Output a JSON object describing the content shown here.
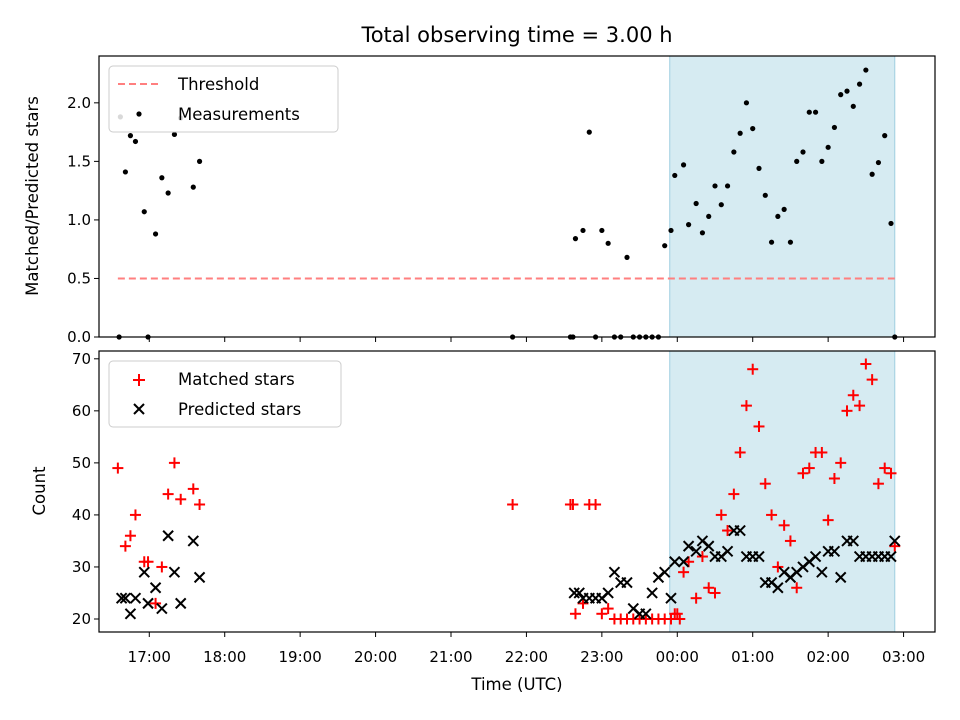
{
  "figure": {
    "title": "Total observing time = 3.00 h"
  },
  "chart_data": [
    {
      "type": "scatter",
      "ylabel": "Matched/Predicted stars",
      "ylim": [
        0,
        2.4
      ],
      "yticks": [
        0.0,
        0.5,
        1.0,
        1.5,
        2.0
      ],
      "ytick_labels": [
        "0.0",
        "0.5",
        "1.0",
        "1.5",
        "2.0"
      ],
      "xlim": [
        "16:20",
        "03:25"
      ],
      "shaded_range": [
        "23:54",
        "02:53"
      ],
      "shade_color": "#add8e6",
      "threshold": {
        "name": "Threshold",
        "y": 0.5,
        "x_range": [
          "16:35",
          "02:53"
        ],
        "color": "#ff7f7f",
        "style": "dashed"
      },
      "series": [
        {
          "name": "Measurements",
          "color": "#000000",
          "marker": "dot",
          "x": [
            "16:36",
            "16:37",
            "16:41",
            "16:45",
            "16:49",
            "16:56",
            "16:59",
            "17:05",
            "17:10",
            "17:15",
            "17:20",
            "17:25",
            "17:35",
            "17:40",
            "21:49",
            "22:35",
            "22:37",
            "22:39",
            "22:45",
            "22:50",
            "22:55",
            "23:00",
            "23:05",
            "23:10",
            "23:15",
            "23:20",
            "23:25",
            "23:30",
            "23:35",
            "23:40",
            "23:45",
            "23:50",
            "23:55",
            "23:58",
            "00:05",
            "00:09",
            "00:15",
            "00:20",
            "00:25",
            "00:30",
            "00:35",
            "00:40",
            "00:45",
            "00:50",
            "00:55",
            "01:00",
            "01:05",
            "01:10",
            "01:15",
            "01:20",
            "01:25",
            "01:30",
            "01:35",
            "01:40",
            "01:45",
            "01:50",
            "01:55",
            "02:00",
            "02:05",
            "02:10",
            "02:15",
            "02:20",
            "02:25",
            "02:30",
            "02:35",
            "02:40",
            "02:45",
            "02:50",
            "02:53"
          ],
          "y": [
            0.0,
            1.88,
            1.41,
            1.72,
            1.67,
            1.07,
            0.0,
            0.88,
            1.36,
            1.23,
            1.73,
            1.87,
            1.28,
            1.5,
            0.0,
            0.0,
            0.0,
            0.84,
            0.91,
            1.75,
            0.0,
            0.91,
            0.8,
            0.0,
            0.0,
            0.68,
            0.0,
            0.0,
            0.0,
            0.0,
            0.0,
            0.78,
            0.91,
            1.38,
            1.47,
            0.96,
            1.14,
            0.89,
            1.03,
            1.29,
            1.13,
            1.29,
            1.58,
            1.74,
            2.0,
            1.78,
            1.44,
            1.21,
            0.81,
            1.03,
            1.09,
            0.81,
            1.5,
            1.58,
            1.92,
            1.92,
            1.5,
            1.62,
            1.79,
            2.07,
            2.1,
            1.97,
            2.16,
            2.28,
            1.39,
            1.49,
            1.72,
            0.97,
            0.0
          ]
        }
      ],
      "legend": {
        "position": "upper-left",
        "entries": [
          "Threshold",
          "Measurements"
        ]
      }
    },
    {
      "type": "scatter",
      "xlabel": "Time (UTC)",
      "ylabel": "Count",
      "ylim": [
        17.5,
        71.5
      ],
      "yticks": [
        20,
        30,
        40,
        50,
        60,
        70
      ],
      "ytick_labels": [
        "20",
        "30",
        "40",
        "50",
        "60",
        "70"
      ],
      "xlim": [
        "16:20",
        "03:25"
      ],
      "xticks": [
        "17:00",
        "18:00",
        "19:00",
        "20:00",
        "21:00",
        "22:00",
        "23:00",
        "00:00",
        "01:00",
        "02:00",
        "03:00"
      ],
      "xtick_labels": [
        "17:00",
        "18:00",
        "19:00",
        "20:00",
        "21:00",
        "22:00",
        "23:00",
        "00:00",
        "01:00",
        "02:00",
        "03:00"
      ],
      "shaded_range": [
        "23:54",
        "02:53"
      ],
      "shade_color": "#add8e6",
      "series": [
        {
          "name": "Matched stars",
          "color": "#ff0000",
          "marker": "plus",
          "x": [
            "16:35",
            "16:41",
            "16:45",
            "16:49",
            "16:56",
            "16:59",
            "17:05",
            "17:10",
            "17:15",
            "17:20",
            "17:25",
            "17:35",
            "17:40",
            "21:49",
            "22:35",
            "22:37",
            "22:39",
            "22:45",
            "22:50",
            "22:55",
            "23:00",
            "23:05",
            "23:10",
            "23:15",
            "23:20",
            "23:25",
            "23:30",
            "23:35",
            "23:40",
            "23:45",
            "23:50",
            "23:55",
            "23:58",
            "00:05",
            "00:09",
            "00:15",
            "00:20",
            "00:25",
            "00:30",
            "00:35",
            "00:40",
            "00:45",
            "00:50",
            "00:55",
            "01:00",
            "01:05",
            "01:10",
            "01:15",
            "01:20",
            "01:25",
            "01:30",
            "01:35",
            "01:40",
            "01:45",
            "01:50",
            "01:55",
            "02:00",
            "02:05",
            "02:10",
            "02:15",
            "02:20",
            "02:25",
            "02:30",
            "02:35",
            "02:40",
            "02:45",
            "02:50",
            "02:53"
          ],
          "y": [
            49,
            34,
            36,
            40,
            31,
            31,
            23,
            30,
            44,
            50,
            43,
            45,
            42,
            42,
            42,
            42,
            21,
            23,
            42,
            42,
            21,
            22,
            20,
            20,
            20,
            20,
            20,
            20,
            20,
            20,
            20,
            20,
            21,
            29,
            31,
            24,
            32,
            26,
            25,
            40,
            37,
            44,
            52,
            61,
            68,
            57,
            46,
            40,
            30,
            38,
            35,
            26,
            48,
            49,
            52,
            52,
            39,
            47,
            50,
            60,
            63,
            61,
            69,
            66,
            46,
            49,
            48,
            34
          ],
          "extra_points": [
            {
              "x": "00:02",
              "y": 20
            },
            {
              "x": "00:00",
              "y": 21
            }
          ]
        },
        {
          "name": "Predicted stars",
          "color": "#000000",
          "marker": "x",
          "x": [
            "16:38",
            "16:41",
            "16:45",
            "16:49",
            "16:56",
            "16:59",
            "17:05",
            "17:10",
            "17:15",
            "17:20",
            "17:25",
            "17:35",
            "17:40",
            "22:38",
            "22:42",
            "22:45",
            "22:50",
            "22:55",
            "23:00",
            "23:05",
            "23:10",
            "23:15",
            "23:20",
            "23:25",
            "23:30",
            "23:35",
            "23:40",
            "23:45",
            "23:50",
            "23:55",
            "23:58",
            "00:05",
            "00:09",
            "00:15",
            "00:20",
            "00:25",
            "00:30",
            "00:35",
            "00:40",
            "00:45",
            "00:50",
            "00:55",
            "01:00",
            "01:05",
            "01:10",
            "01:15",
            "01:20",
            "01:25",
            "01:30",
            "01:35",
            "01:40",
            "01:45",
            "01:50",
            "01:55",
            "02:00",
            "02:05",
            "02:10",
            "02:15",
            "02:20",
            "02:25",
            "02:30",
            "02:35",
            "02:40",
            "02:45",
            "02:50",
            "02:53"
          ],
          "y": [
            24,
            24,
            21,
            24,
            29,
            23,
            26,
            22,
            36,
            29,
            23,
            35,
            28,
            25,
            25,
            24,
            24,
            24,
            24,
            25,
            29,
            27,
            27,
            22,
            21,
            21,
            25,
            28,
            29,
            24,
            31,
            31,
            34,
            33,
            35,
            34,
            32,
            32,
            33,
            37,
            37,
            32,
            32,
            32,
            27,
            27,
            26,
            29,
            28,
            29,
            30,
            31,
            32,
            29,
            33,
            33,
            28,
            35,
            35,
            32,
            32,
            32,
            32,
            32,
            32,
            35
          ]
        }
      ],
      "legend": {
        "position": "upper-left",
        "entries": [
          "Matched stars",
          "Predicted stars"
        ]
      }
    }
  ]
}
